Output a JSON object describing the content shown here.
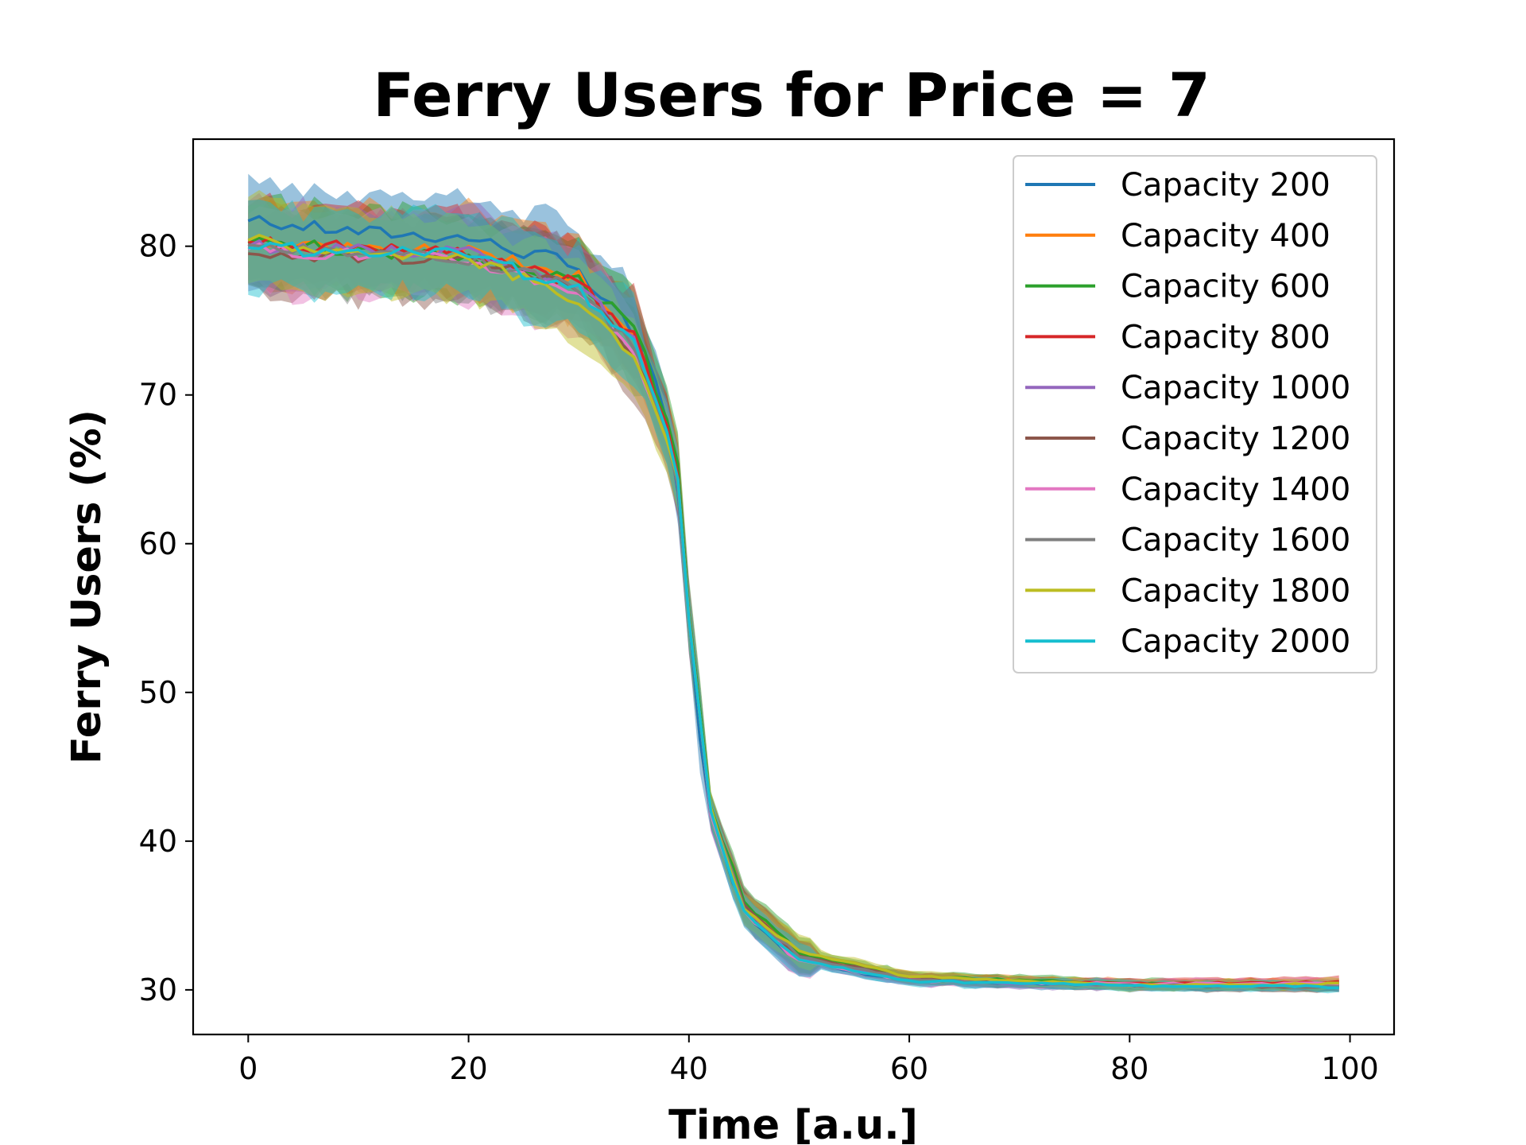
{
  "chart_data": {
    "type": "line",
    "title": "Ferry Users for Price = 7",
    "xlabel": "Time [a.u.]",
    "ylabel": "Ferry Users (%)",
    "xlim": [
      -5,
      104
    ],
    "ylim": [
      27,
      87.2
    ],
    "xticks": [
      0,
      20,
      40,
      60,
      80,
      100
    ],
    "yticks": [
      30,
      40,
      50,
      60,
      70,
      80
    ],
    "grid": false,
    "legend_position": "top-right",
    "shaded_band": "± spread around each series mean",
    "series": [
      {
        "name": "Capacity 200",
        "color": "#1f77b4",
        "values_at": {
          "0": 81.7,
          "10": 81.0,
          "20": 80.6,
          "25": 79.6,
          "28": 79.2,
          "30": 78.0,
          "33": 76.0,
          "36": 73.0,
          "38": 68.0,
          "39": 63.5,
          "40": 55.0,
          "41": 47.0,
          "42": 42.0,
          "44": 37.0,
          "46": 34.2,
          "48": 33.0,
          "50": 32.2,
          "55": 31.2,
          "60": 30.7,
          "70": 30.4,
          "80": 30.3,
          "90": 30.3,
          "99": 30.3
        }
      },
      {
        "name": "Capacity 400",
        "color": "#ff7f0e",
        "values_at": {
          "0": 80.0,
          "20": 79.6,
          "30": 78.0,
          "35": 74.0,
          "38": 68.0,
          "39": 65.0,
          "40": 55.0,
          "42": 42.0,
          "45": 35.5,
          "50": 32.3,
          "60": 30.8,
          "80": 30.4,
          "99": 30.4
        }
      },
      {
        "name": "Capacity 600",
        "color": "#2ca02c",
        "values_at": {
          "0": 80.2,
          "20": 79.3,
          "30": 77.8,
          "35": 74.5,
          "38": 68.5,
          "39": 65.5,
          "40": 55.5,
          "42": 42.5,
          "45": 35.8,
          "50": 32.5,
          "60": 30.9,
          "80": 30.4,
          "99": 30.3
        }
      },
      {
        "name": "Capacity 800",
        "color": "#d62728",
        "values_at": {
          "0": 80.3,
          "20": 79.4,
          "30": 77.5,
          "35": 74.0,
          "38": 68.0,
          "39": 64.5,
          "40": 55.0,
          "42": 42.0,
          "45": 35.4,
          "50": 32.2,
          "60": 30.7,
          "80": 30.4,
          "99": 30.5
        }
      },
      {
        "name": "Capacity 1000",
        "color": "#9467bd",
        "values_at": {
          "0": 80.0,
          "20": 79.5,
          "30": 77.3,
          "35": 73.5,
          "38": 67.5,
          "39": 64.0,
          "40": 55.0,
          "42": 42.0,
          "45": 35.3,
          "50": 32.1,
          "60": 30.6,
          "80": 30.3,
          "99": 30.3
        }
      },
      {
        "name": "Capacity 1200",
        "color": "#8c564b",
        "values_at": {
          "0": 79.5,
          "20": 79.2,
          "30": 77.0,
          "35": 73.0,
          "38": 67.5,
          "39": 64.0,
          "40": 55.0,
          "42": 42.0,
          "45": 35.6,
          "50": 32.3,
          "60": 30.8,
          "80": 30.3,
          "99": 30.2
        }
      },
      {
        "name": "Capacity 1400",
        "color": "#e377c2",
        "values_at": {
          "0": 79.8,
          "20": 79.0,
          "30": 77.0,
          "35": 73.0,
          "38": 67.0,
          "39": 64.0,
          "40": 55.0,
          "42": 42.0,
          "45": 35.2,
          "50": 32.0,
          "60": 30.6,
          "80": 30.4,
          "99": 30.4
        }
      },
      {
        "name": "Capacity 1600",
        "color": "#7f7f7f",
        "values_at": {
          "0": 80.1,
          "20": 79.2,
          "30": 77.2,
          "35": 73.2,
          "38": 67.2,
          "39": 64.0,
          "40": 55.0,
          "42": 42.0,
          "45": 35.4,
          "50": 32.2,
          "60": 30.7,
          "80": 30.3,
          "99": 30.2
        }
      },
      {
        "name": "Capacity 1800",
        "color": "#bcbd22",
        "values_at": {
          "0": 80.4,
          "20": 79.0,
          "30": 76.5,
          "35": 72.5,
          "38": 67.0,
          "39": 64.2,
          "40": 55.0,
          "42": 42.0,
          "45": 35.3,
          "50": 32.6,
          "60": 30.9,
          "80": 30.3,
          "99": 30.4
        }
      },
      {
        "name": "Capacity 2000",
        "color": "#17becf",
        "values_at": {
          "0": 79.9,
          "20": 79.4,
          "30": 77.0,
          "35": 73.5,
          "38": 67.5,
          "39": 64.5,
          "40": 55.0,
          "42": 42.0,
          "45": 35.2,
          "50": 32.0,
          "60": 30.6,
          "80": 30.3,
          "99": 30.2
        }
      }
    ]
  }
}
